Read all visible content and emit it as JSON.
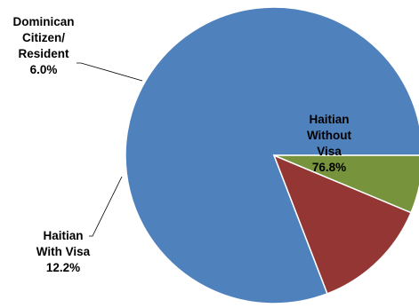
{
  "chart_data": {
    "type": "pie",
    "title": "",
    "start_angle_deg": 0,
    "direction": "counterclockwise",
    "legend": "none",
    "slices": [
      {
        "label_lines": [
          "Haitian",
          "Without",
          "Visa"
        ],
        "value": 76.8,
        "value_label": "76.8%",
        "color": "#4F81BD",
        "label_position": "inside"
      },
      {
        "label_lines": [
          "Haitian",
          "With Visa"
        ],
        "value": 12.2,
        "value_label": "12.2%",
        "color": "#943634",
        "label_position": "outside-bottom-left"
      },
      {
        "label_lines": [
          "Dominican",
          "Citizen/",
          "Resident"
        ],
        "value": 6.0,
        "value_label": "6.0%",
        "color": "#77933C",
        "label_position": "outside-top-left"
      }
    ]
  }
}
